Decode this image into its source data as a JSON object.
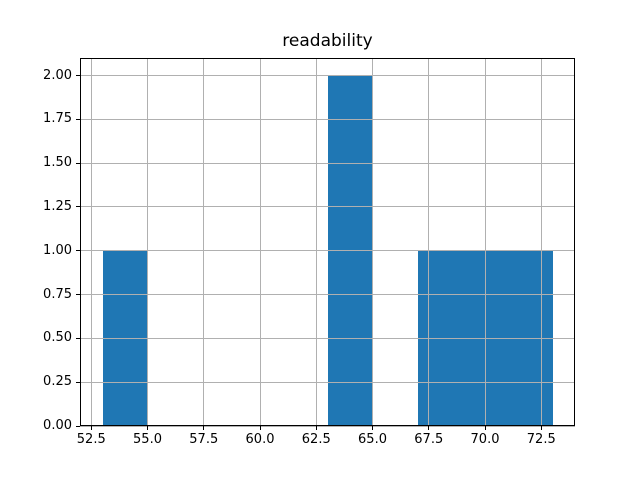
{
  "figure": {
    "background": "#ffffff"
  },
  "chart_data": {
    "type": "bar",
    "subtype": "histogram",
    "title": "readability",
    "xlabel": "",
    "ylabel": "",
    "bar_color": "#1f77b4",
    "grid": true,
    "grid_color": "#b0b0b0",
    "grid_above_bars": true,
    "spine_color": "#000000",
    "legend": "none",
    "xlim": [
      52.0,
      74.0
    ],
    "ylim": [
      0.0,
      2.1
    ],
    "bin_edges": [
      53,
      55,
      57,
      59,
      61,
      63,
      65,
      67,
      69,
      71,
      73
    ],
    "counts": [
      1,
      0,
      0,
      0,
      0,
      2,
      0,
      1,
      1,
      1
    ],
    "xticks": [
      52.5,
      55.0,
      57.5,
      60.0,
      62.5,
      65.0,
      67.5,
      70.0,
      72.5
    ],
    "xtick_labels": [
      "52.5",
      "55.0",
      "57.5",
      "60.0",
      "62.5",
      "65.0",
      "67.5",
      "70.0",
      "72.5"
    ],
    "yticks": [
      0.0,
      0.25,
      0.5,
      0.75,
      1.0,
      1.25,
      1.5,
      1.75,
      2.0
    ],
    "ytick_labels": [
      "0.00",
      "0.25",
      "0.50",
      "0.75",
      "1.00",
      "1.25",
      "1.50",
      "1.75",
      "2.00"
    ]
  }
}
